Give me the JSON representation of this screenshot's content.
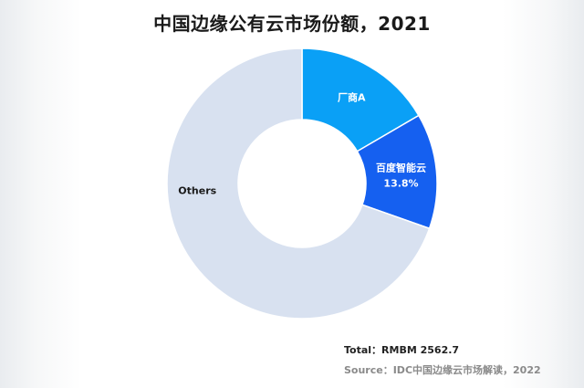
{
  "title": "中国边缘公有云市场份额，2021",
  "footer": {
    "total": "Total：RMBM 2562.7",
    "source": "Source：IDC中国边缘云市场解读，2022"
  },
  "colors": {
    "vendor_a": "#0aa0f6",
    "baidu": "#1560f0",
    "others": "#d8e1f0"
  },
  "chart_data": {
    "type": "pie",
    "donut": true,
    "title": "中国边缘公有云市场份额，2021",
    "slices": [
      {
        "label": "厂商A",
        "value": 16.6,
        "value_label": "",
        "color": "#0aa0f6",
        "text_color": "#ffffff"
      },
      {
        "label": "百度智能云",
        "value": 13.8,
        "value_label": "13.8%",
        "color": "#1560f0",
        "text_color": "#ffffff"
      },
      {
        "label": "Others",
        "value": 69.6,
        "value_label": "",
        "color": "#d8e1f0",
        "text_color": "#1a1a1a"
      }
    ],
    "total": "RMBM 2562.7"
  }
}
